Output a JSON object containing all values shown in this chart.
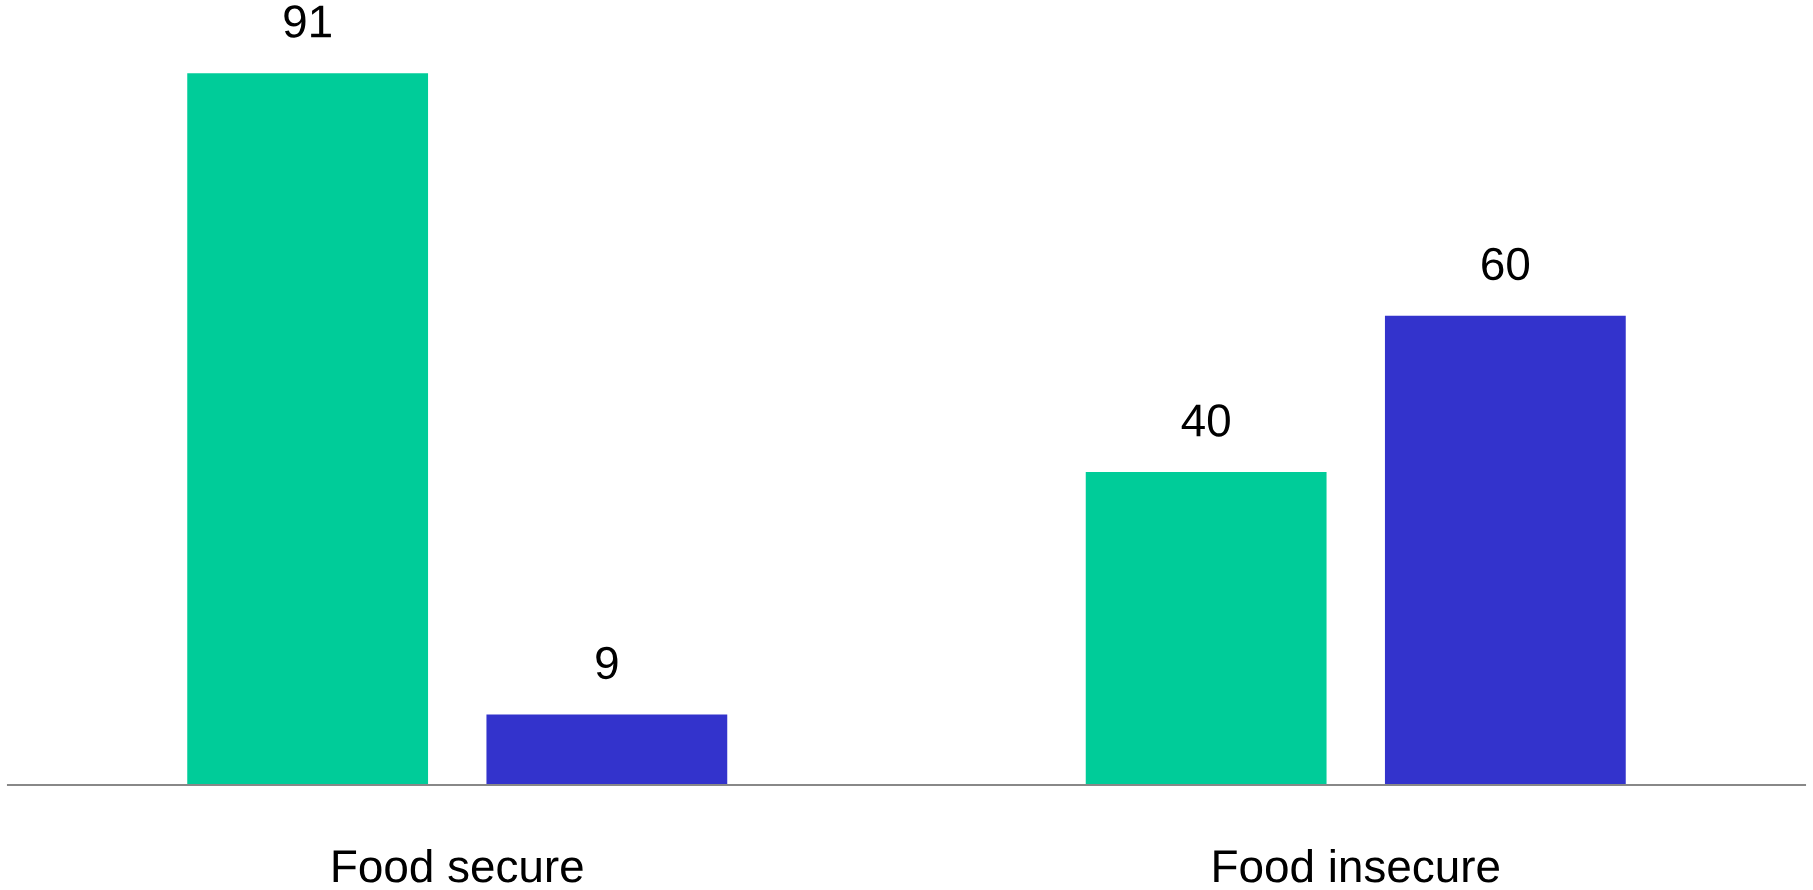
{
  "chart_data": {
    "type": "bar",
    "categories": [
      "Food secure",
      "Food insecure"
    ],
    "series": [
      {
        "color": "#00cc99",
        "values": [
          91,
          40
        ]
      },
      {
        "color": "#3333cc",
        "values": [
          9,
          60
        ]
      }
    ],
    "tick_labels": "x",
    "data_labels": true
  }
}
